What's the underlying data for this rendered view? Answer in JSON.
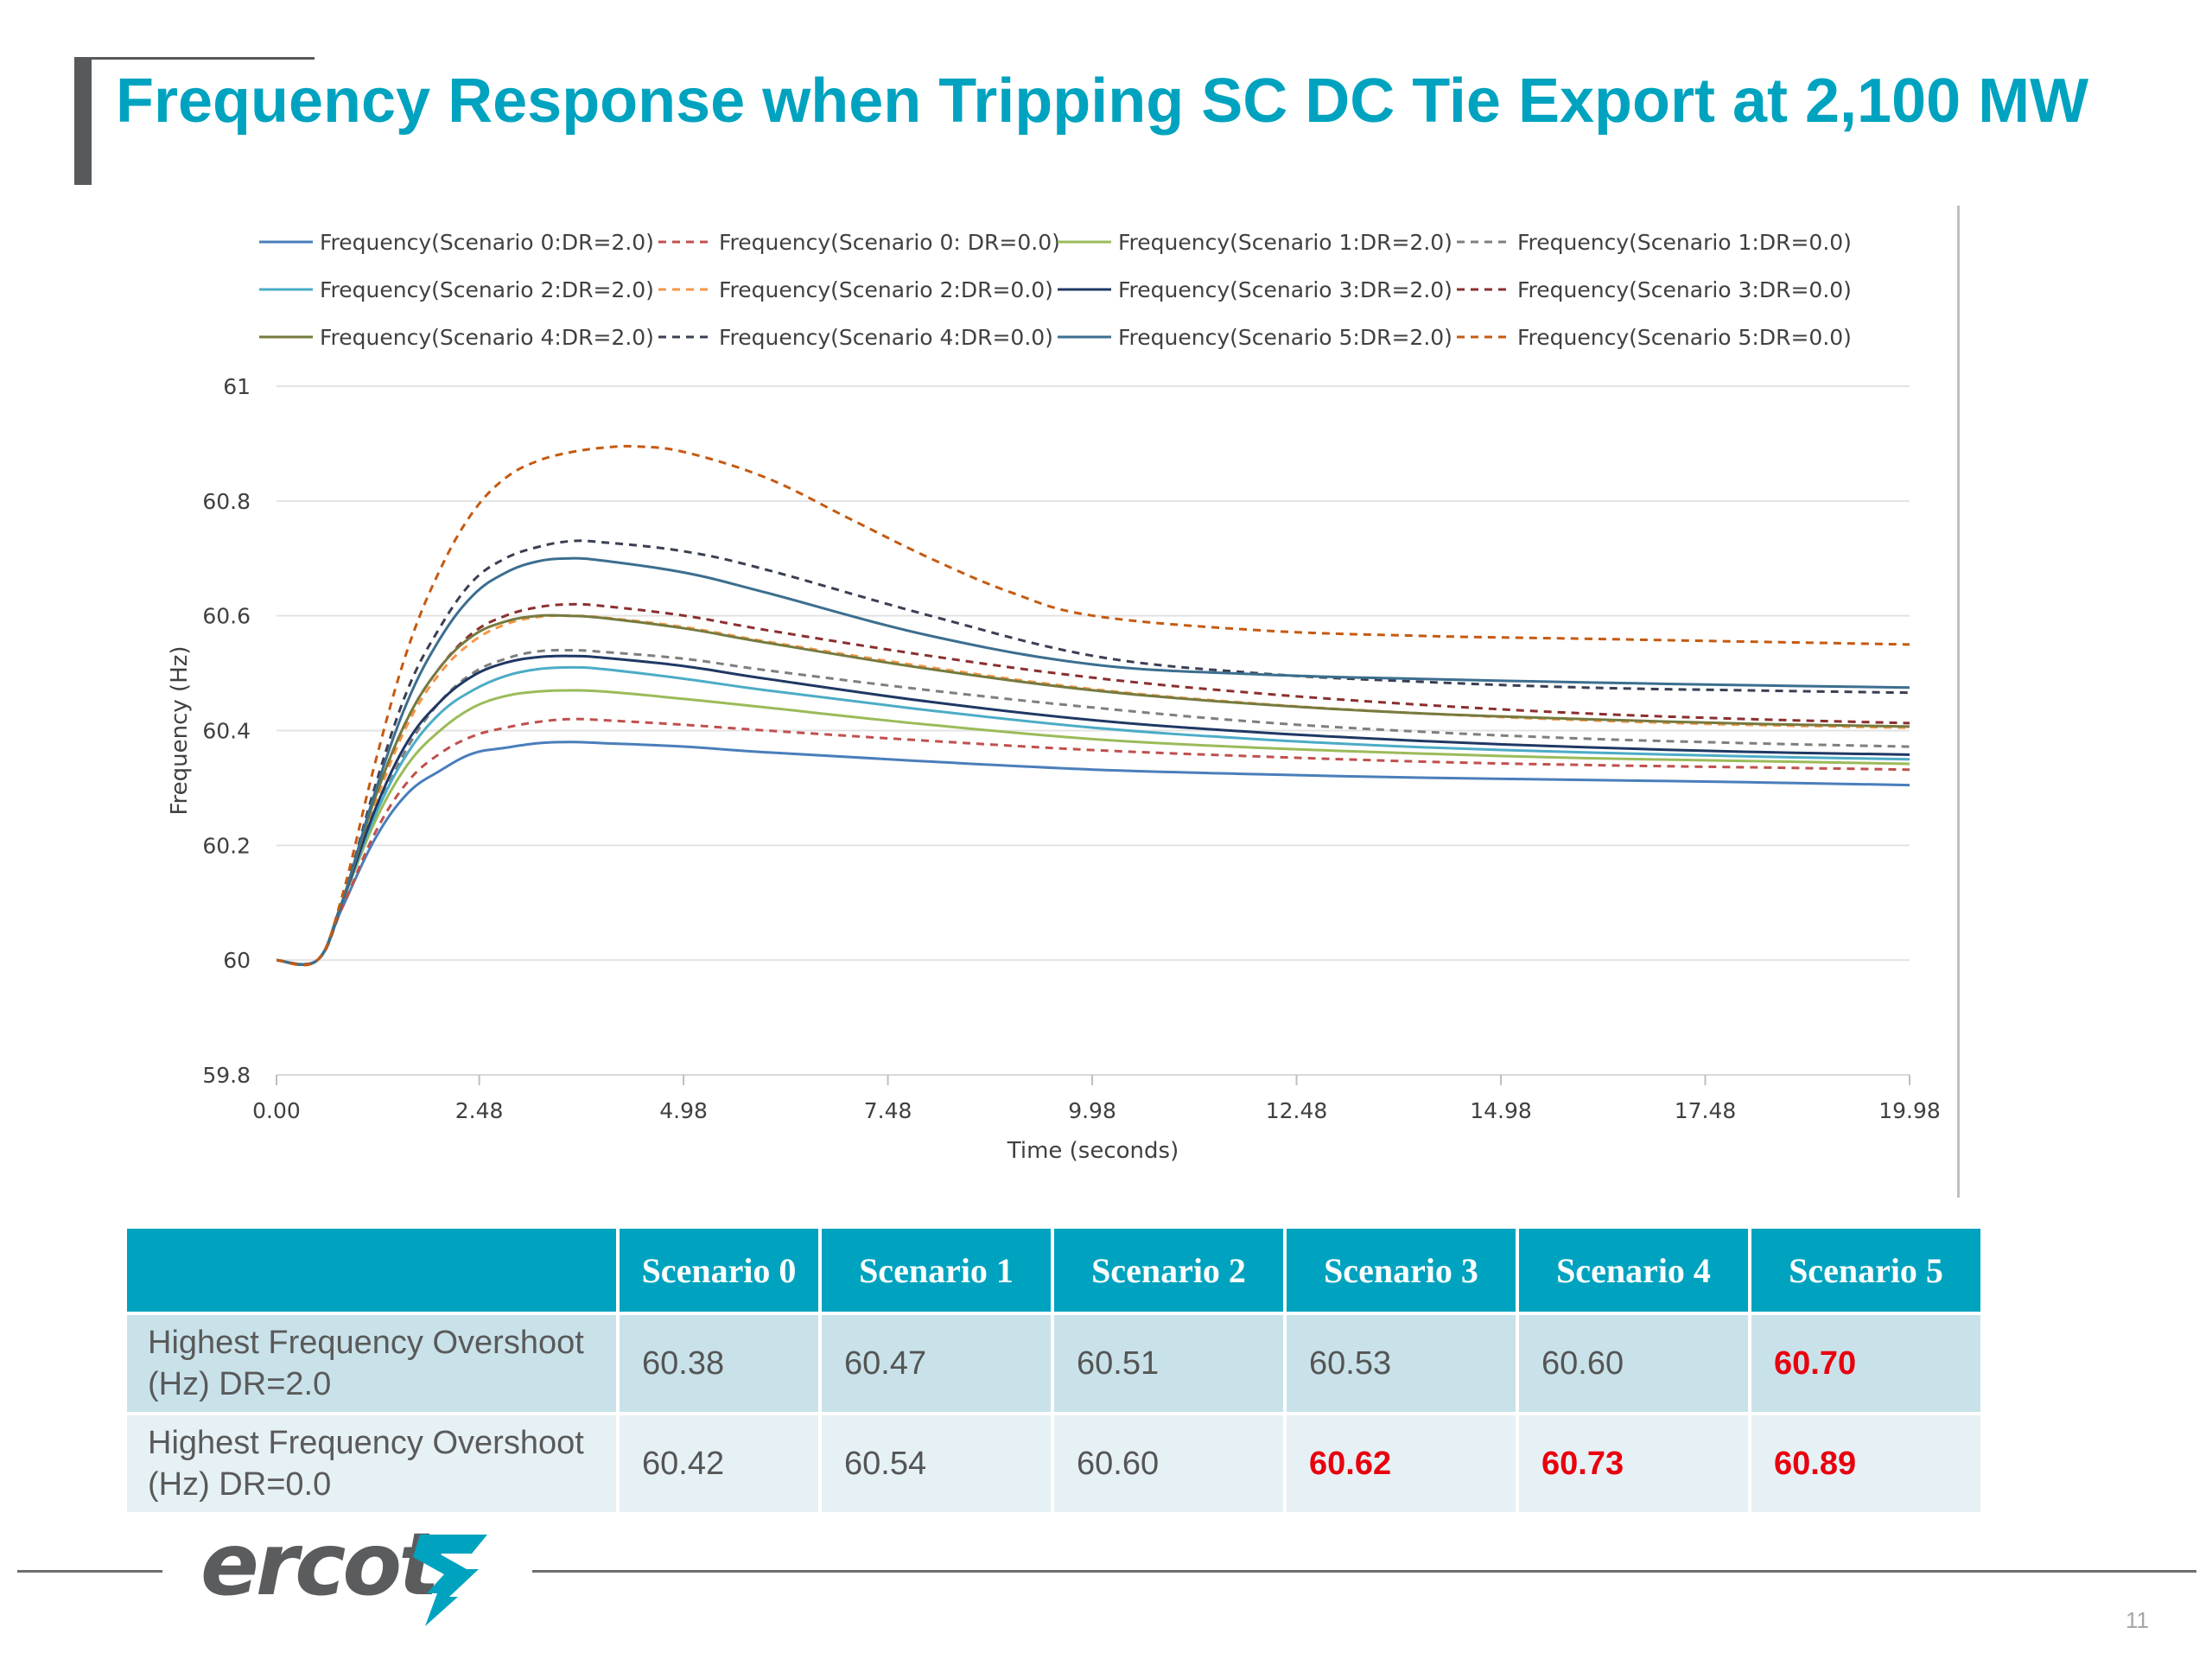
{
  "slide": {
    "title": "Frequency Response when Tripping SC DC Tie Export at 2,100 MW",
    "page_number": "11",
    "logo_text": "ercot"
  },
  "colors": {
    "accent": "#00a3bf",
    "highlight_red": "#e8000e",
    "row_dark": "#c9e2ea",
    "row_light": "#e6f1f5"
  },
  "chart_data": {
    "type": "line",
    "xlabel": "Time (seconds)",
    "ylabel": "Frequency (Hz)",
    "x_ticks": [
      "0.00",
      "2.48",
      "4.98",
      "7.48",
      "9.98",
      "12.48",
      "14.98",
      "17.48",
      "19.98"
    ],
    "y_ticks": [
      "59.8",
      "60",
      "60.2",
      "60.4",
      "60.6",
      "60.8",
      "61"
    ],
    "xlim": [
      0,
      19.98
    ],
    "ylim": [
      59.8,
      61
    ],
    "grid": "horizontal",
    "legend_position": "top",
    "series": [
      {
        "name": "Frequency(Scenario 0:DR=2.0)",
        "color": "#4a7ebb",
        "dash": "solid",
        "x": [
          0,
          0.5,
          0.8,
          1.2,
          1.6,
          2.0,
          2.4,
          2.8,
          3.2,
          3.6,
          4.0,
          5.0,
          6.0,
          8.0,
          10.0,
          12.0,
          14.0,
          16.0,
          18.0,
          19.98
        ],
        "y": [
          60,
          60,
          60.09,
          60.21,
          60.29,
          60.33,
          60.36,
          60.37,
          60.378,
          60.38,
          60.378,
          60.372,
          60.362,
          60.346,
          60.332,
          60.324,
          60.318,
          60.314,
          60.31,
          60.305
        ]
      },
      {
        "name": "Frequency(Scenario 0: DR=0.0)",
        "color": "#c0504d",
        "dash": "dashed",
        "x": [
          0,
          0.5,
          0.8,
          1.2,
          1.6,
          2.0,
          2.4,
          2.8,
          3.2,
          3.6,
          4.0,
          5.0,
          6.0,
          8.0,
          10.0,
          12.0,
          14.0,
          16.0,
          18.0,
          19.98
        ],
        "y": [
          60,
          60,
          60.09,
          60.22,
          60.31,
          60.36,
          60.39,
          60.405,
          60.415,
          60.42,
          60.418,
          60.41,
          60.4,
          60.382,
          60.366,
          60.355,
          60.346,
          60.34,
          60.336,
          60.332
        ]
      },
      {
        "name": "Frequency(Scenario 1:DR=2.0)",
        "color": "#9bbb59",
        "dash": "solid",
        "x": [
          0,
          0.5,
          0.8,
          1.2,
          1.6,
          2.0,
          2.4,
          2.8,
          3.2,
          3.6,
          4.0,
          5.0,
          6.0,
          8.0,
          10.0,
          12.0,
          14.0,
          16.0,
          18.0,
          19.98
        ],
        "y": [
          60,
          60,
          60.1,
          60.24,
          60.34,
          60.4,
          60.44,
          60.46,
          60.468,
          60.47,
          60.468,
          60.455,
          60.44,
          60.41,
          60.385,
          60.37,
          60.36,
          60.352,
          60.347,
          60.342
        ]
      },
      {
        "name": "Frequency(Scenario 1:DR=0.0)",
        "color": "#7f7f7f",
        "dash": "dashed",
        "x": [
          0,
          0.5,
          0.8,
          1.2,
          1.6,
          2.0,
          2.4,
          2.8,
          3.2,
          3.6,
          4.0,
          5.0,
          6.0,
          8.0,
          10.0,
          12.0,
          14.0,
          16.0,
          18.0,
          19.98
        ],
        "y": [
          60,
          60,
          60.1,
          60.25,
          60.37,
          60.45,
          60.5,
          60.525,
          60.538,
          60.54,
          60.537,
          60.525,
          60.505,
          60.47,
          60.44,
          60.415,
          60.398,
          60.386,
          60.378,
          60.372
        ]
      },
      {
        "name": "Frequency(Scenario 2:DR=2.0)",
        "color": "#4bacc6",
        "dash": "solid",
        "x": [
          0,
          0.5,
          0.8,
          1.2,
          1.6,
          2.0,
          2.4,
          2.8,
          3.2,
          3.6,
          4.0,
          5.0,
          6.0,
          8.0,
          10.0,
          12.0,
          14.0,
          16.0,
          18.0,
          19.98
        ],
        "y": [
          60,
          60,
          60.1,
          60.25,
          60.36,
          60.43,
          60.47,
          60.495,
          60.507,
          60.51,
          60.507,
          60.49,
          60.47,
          60.435,
          60.405,
          60.385,
          60.371,
          60.362,
          60.355,
          60.35
        ]
      },
      {
        "name": "Frequency(Scenario 2:DR=0.0)",
        "color": "#f79646",
        "dash": "dashed",
        "x": [
          0,
          0.5,
          0.8,
          1.2,
          1.6,
          2.0,
          2.4,
          2.8,
          3.2,
          3.6,
          4.0,
          5.0,
          6.0,
          8.0,
          10.0,
          12.0,
          14.0,
          16.0,
          18.0,
          19.98
        ],
        "y": [
          60,
          60,
          60.1,
          60.27,
          60.41,
          60.5,
          60.555,
          60.585,
          60.598,
          60.6,
          60.597,
          60.58,
          60.555,
          60.51,
          60.472,
          60.447,
          60.43,
          60.418,
          60.41,
          60.405
        ]
      },
      {
        "name": "Frequency(Scenario 3:DR=2.0)",
        "color": "#1f3864",
        "dash": "solid",
        "x": [
          0,
          0.5,
          0.8,
          1.2,
          1.6,
          2.0,
          2.4,
          2.8,
          3.2,
          3.6,
          4.0,
          5.0,
          6.0,
          8.0,
          10.0,
          12.0,
          14.0,
          16.0,
          18.0,
          19.98
        ],
        "y": [
          60,
          60,
          60.1,
          60.26,
          60.38,
          60.45,
          60.495,
          60.518,
          60.528,
          60.53,
          60.527,
          60.512,
          60.49,
          60.45,
          60.418,
          60.397,
          60.382,
          60.371,
          60.363,
          60.358
        ]
      },
      {
        "name": "Frequency(Scenario 3:DR=0.0)",
        "color": "#8b2f2f",
        "dash": "dashed",
        "x": [
          0,
          0.5,
          0.8,
          1.2,
          1.6,
          2.0,
          2.4,
          2.8,
          3.2,
          3.6,
          4.0,
          5.0,
          6.0,
          8.0,
          10.0,
          12.0,
          14.0,
          16.0,
          18.0,
          19.98
        ],
        "y": [
          60,
          60,
          60.1,
          60.28,
          60.42,
          60.51,
          60.57,
          60.6,
          60.615,
          60.62,
          60.617,
          60.6,
          60.575,
          60.53,
          60.492,
          60.465,
          60.445,
          60.43,
          60.42,
          60.413
        ]
      },
      {
        "name": "Frequency(Scenario 4:DR=2.0)",
        "color": "#767a3e",
        "dash": "solid",
        "x": [
          0,
          0.5,
          0.8,
          1.2,
          1.6,
          2.0,
          2.4,
          2.8,
          3.2,
          3.6,
          4.0,
          5.0,
          6.0,
          8.0,
          10.0,
          12.0,
          14.0,
          16.0,
          18.0,
          19.98
        ],
        "y": [
          60,
          60,
          60.1,
          60.28,
          60.42,
          60.51,
          60.565,
          60.59,
          60.6,
          60.6,
          60.596,
          60.578,
          60.553,
          60.507,
          60.47,
          60.446,
          60.43,
          60.42,
          60.412,
          60.407
        ]
      },
      {
        "name": "Frequency(Scenario 4:DR=0.0)",
        "color": "#3a3f52",
        "dash": "dashed",
        "x": [
          0,
          0.5,
          0.8,
          1.2,
          1.6,
          2.0,
          2.4,
          2.8,
          3.2,
          3.6,
          4.0,
          5.0,
          6.0,
          8.0,
          10.0,
          12.0,
          14.0,
          16.0,
          18.0,
          19.98
        ],
        "y": [
          60,
          60,
          60.1,
          60.3,
          60.47,
          60.58,
          60.66,
          60.7,
          60.72,
          60.73,
          60.728,
          60.712,
          60.68,
          60.6,
          60.53,
          60.5,
          60.485,
          60.475,
          60.47,
          60.466
        ]
      },
      {
        "name": "Frequency(Scenario 5:DR=2.0)",
        "color": "#3c6e8f",
        "dash": "solid",
        "x": [
          0,
          0.5,
          0.8,
          1.2,
          1.6,
          2.0,
          2.4,
          2.8,
          3.2,
          3.6,
          4.0,
          5.0,
          6.0,
          8.0,
          10.0,
          12.0,
          14.0,
          16.0,
          18.0,
          19.98
        ],
        "y": [
          60,
          60,
          60.1,
          60.29,
          60.45,
          60.56,
          60.635,
          60.675,
          60.695,
          60.7,
          60.696,
          60.675,
          60.64,
          60.565,
          60.515,
          60.498,
          60.49,
          60.484,
          60.479,
          60.475
        ]
      },
      {
        "name": "Frequency(Scenario 5:DR=0.0)",
        "color": "#c55a11",
        "dash": "dashed",
        "x": [
          0,
          0.5,
          0.8,
          1.2,
          1.6,
          2.0,
          2.4,
          2.8,
          3.2,
          3.6,
          4.0,
          4.4,
          5.0,
          6.0,
          7.0,
          8.0,
          9.0,
          10.0,
          12.0,
          14.0,
          16.0,
          18.0,
          19.98
        ],
        "y": [
          60,
          60,
          60.11,
          60.34,
          60.54,
          60.68,
          60.78,
          60.84,
          60.87,
          60.885,
          60.893,
          60.895,
          60.885,
          60.84,
          60.77,
          60.7,
          60.64,
          60.6,
          60.575,
          60.565,
          60.56,
          60.555,
          60.55
        ]
      }
    ]
  },
  "table": {
    "headers": [
      "",
      "Scenario 0",
      "Scenario 1",
      "Scenario 2",
      "Scenario 3",
      "Scenario 4",
      "Scenario 5"
    ],
    "rows": [
      {
        "label": "Highest Frequency Overshoot (Hz) DR=2.0",
        "values": [
          "60.38",
          "60.47",
          "60.51",
          "60.53",
          "60.60",
          "60.70"
        ],
        "highlight": [
          false,
          false,
          false,
          false,
          false,
          true
        ]
      },
      {
        "label": "Highest Frequency Overshoot (Hz) DR=0.0",
        "values": [
          "60.42",
          "60.54",
          "60.60",
          "60.62",
          "60.73",
          "60.89"
        ],
        "highlight": [
          false,
          false,
          false,
          true,
          true,
          true
        ]
      }
    ]
  }
}
